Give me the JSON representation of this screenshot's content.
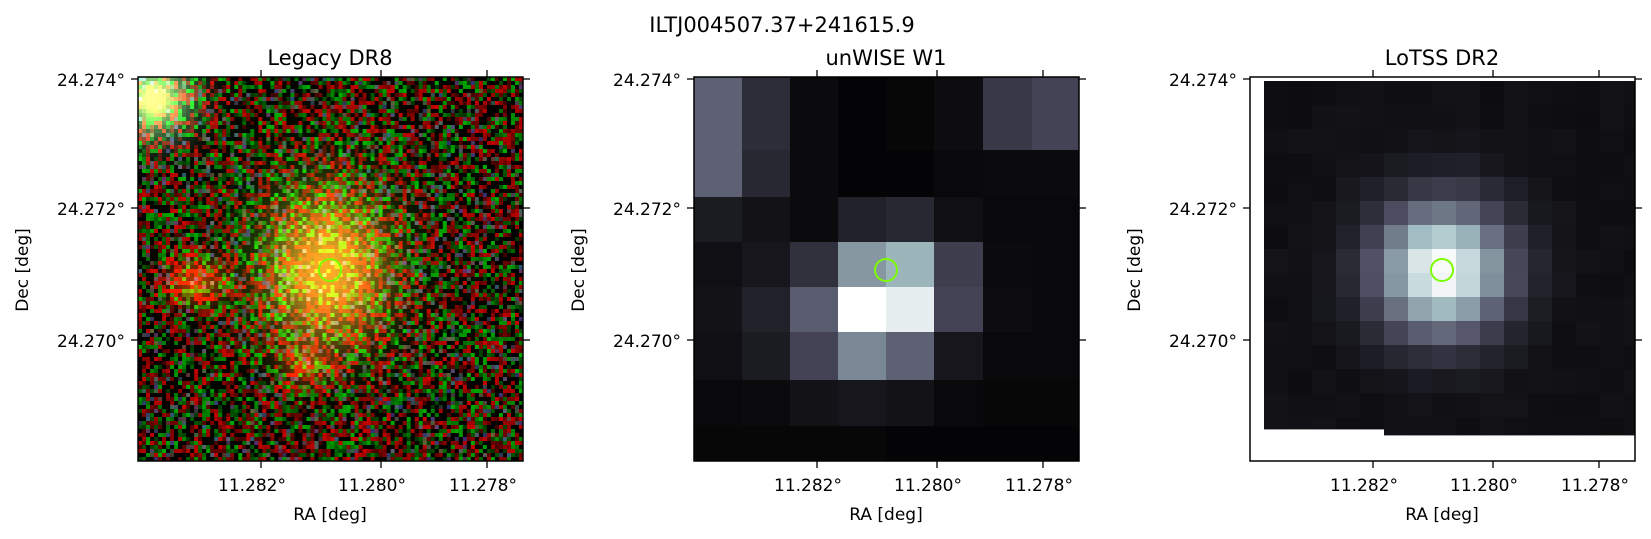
{
  "figure": {
    "title": "ILTJ004507.37+241615.9"
  },
  "panels": [
    {
      "title": "Legacy DR8",
      "xlabel": "RA [deg]",
      "ylabel": "Dec [deg]",
      "xticks": [
        "11.282°",
        "11.280°",
        "11.278°"
      ],
      "yticks": [
        "24.274°",
        "24.272°",
        "24.270°"
      ],
      "image": "optical RGB cutout: noisy red/green pixel field, bright green-white star at top-left, orange galaxy at center with a fainter red source to the left",
      "marker": {
        "shape": "circle",
        "color": "#7cfc00"
      }
    },
    {
      "title": "unWISE W1",
      "xlabel": "RA [deg]",
      "ylabel": "Dec [deg]",
      "xticks": [
        "11.282°",
        "11.280°",
        "11.278°"
      ],
      "yticks": [
        "24.274°",
        "24.272°",
        "24.270°"
      ],
      "image": "coarse grayscale/bone pixel map, bright blob near center",
      "marker": {
        "shape": "circle",
        "color": "#7cfc00"
      }
    },
    {
      "title": "LoTSS DR2",
      "xlabel": "RA [deg]",
      "ylabel": "Dec [deg]",
      "xticks": [
        "11.282°",
        "11.280°",
        "11.278°"
      ],
      "yticks": [
        "24.274°",
        "24.272°",
        "24.270°"
      ],
      "image": "grayscale/bone radio map, compact bright source at center, white blank border at left and bottom",
      "marker": {
        "shape": "circle",
        "color": "#7cfc00"
      }
    }
  ],
  "colors": {
    "marker": "#7cfc00",
    "background": "#ffffff"
  }
}
